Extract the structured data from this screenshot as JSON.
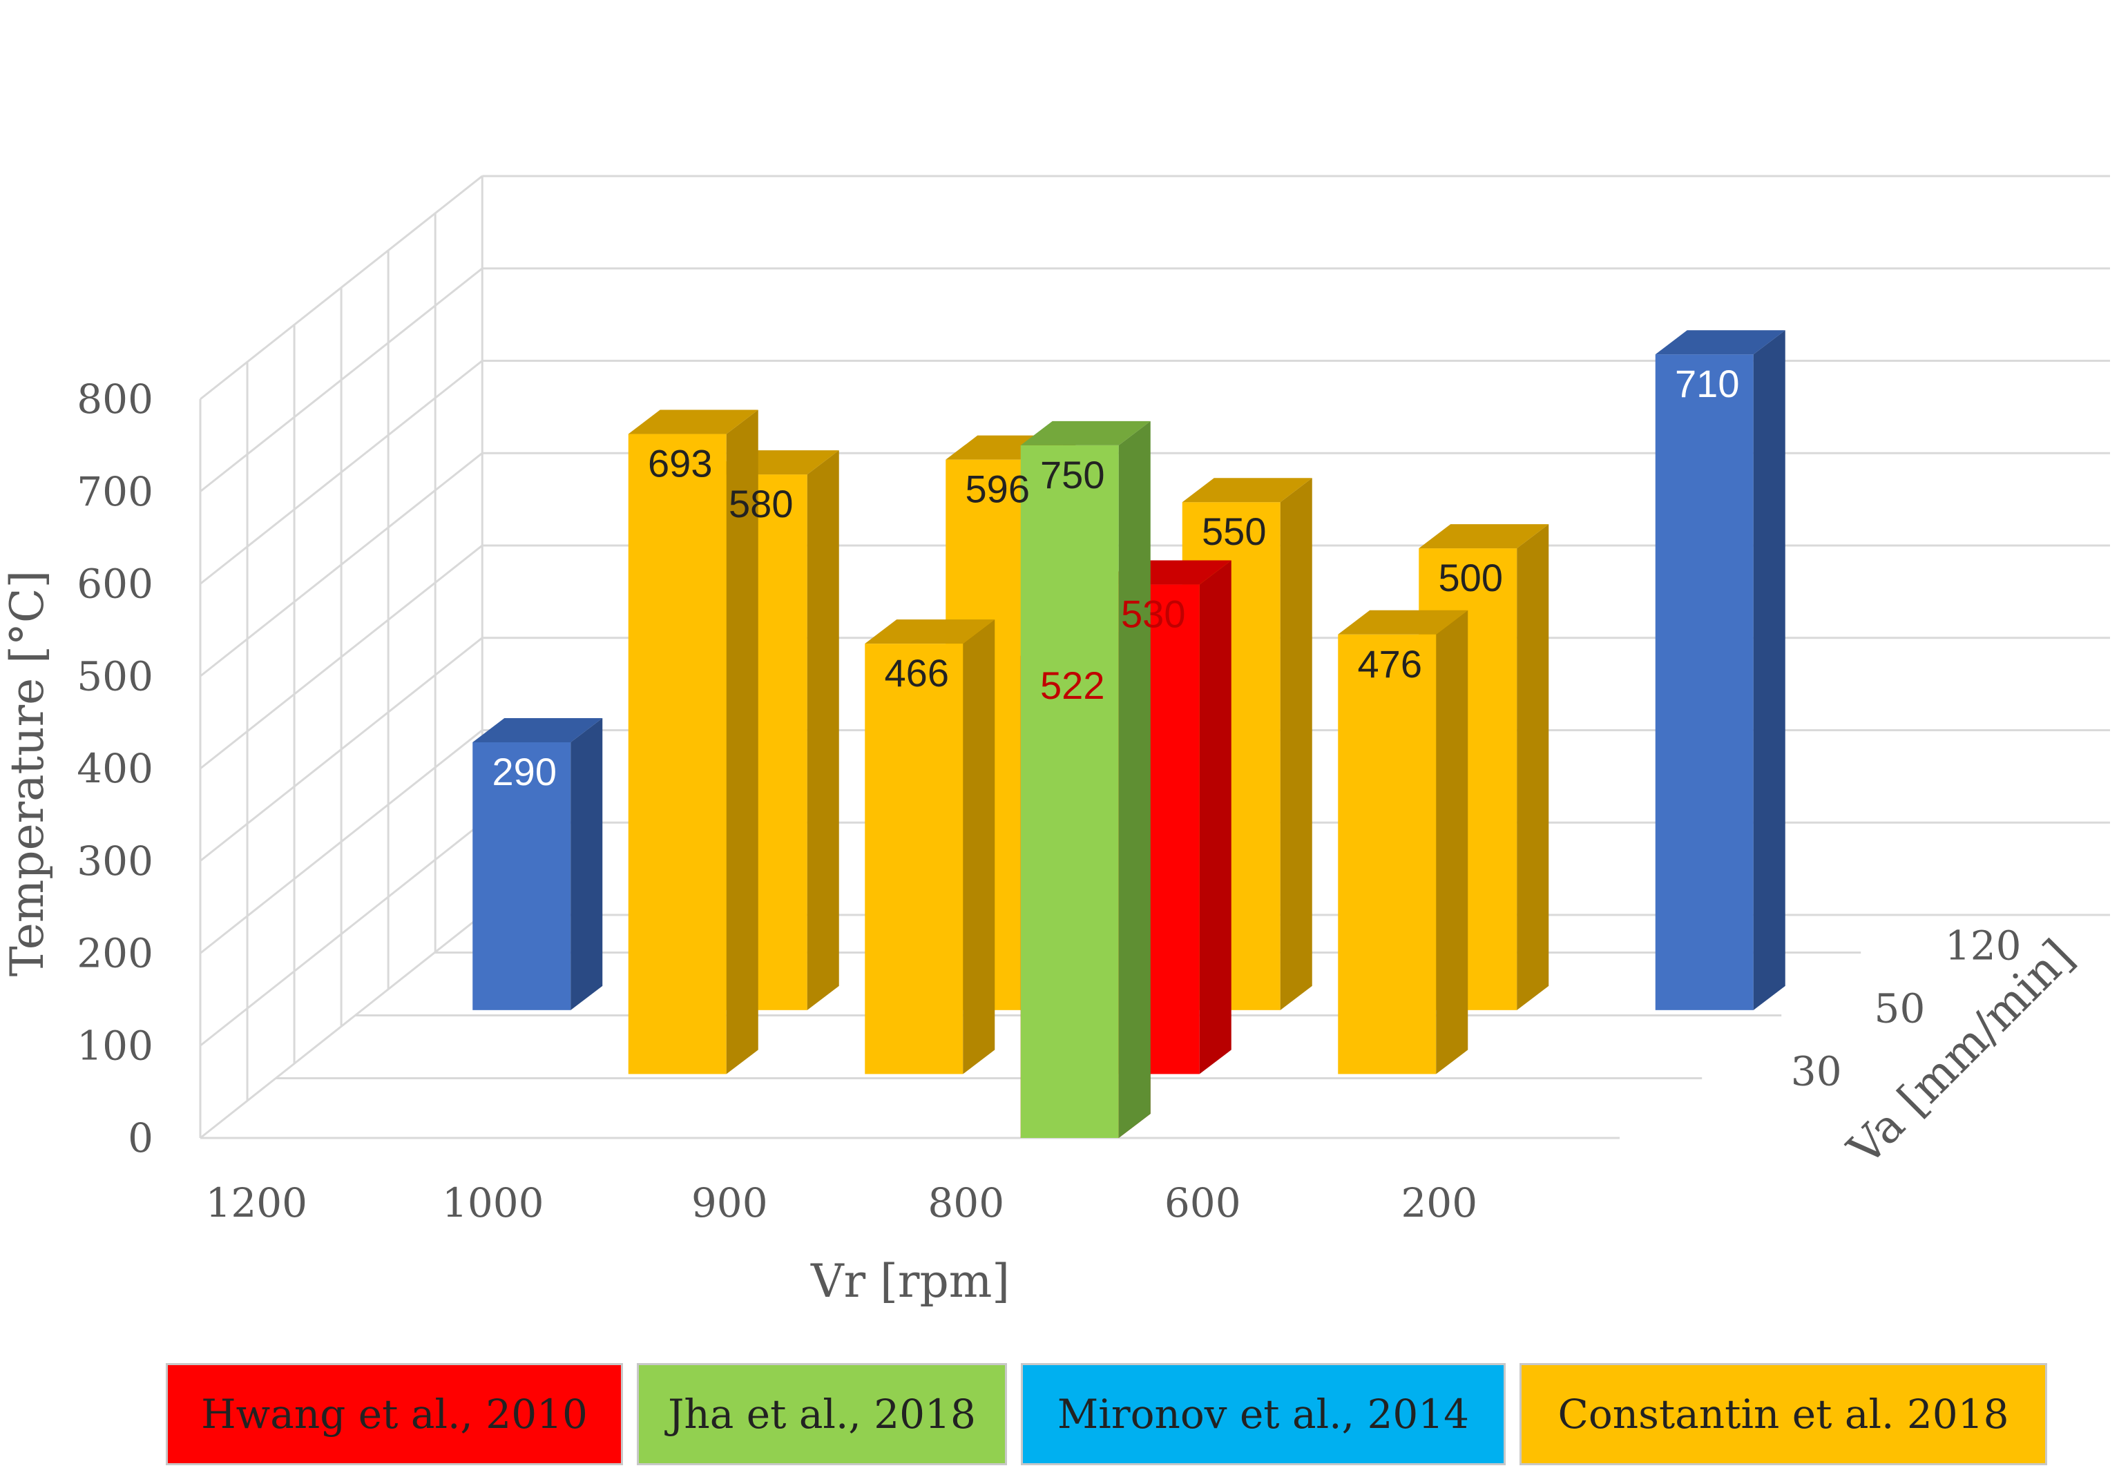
{
  "chart_data": {
    "type": "bar3d",
    "title": "",
    "xlabel": "Vr [rpm]",
    "ylabel": "Temperature [°C]",
    "zlabel": "Va [mm/min]",
    "x_categories": [
      "1200",
      "1000",
      "900",
      "800",
      "600",
      "200"
    ],
    "z_categories": [
      "30",
      "50",
      "120"
    ],
    "ylim": [
      0,
      800
    ],
    "y_ticks": [
      0,
      100,
      200,
      300,
      400,
      500,
      600,
      700,
      800
    ],
    "series": [
      {
        "name": "Hwang et al., 2010",
        "color": "#FF0000",
        "side": "#B80000",
        "top": "#CC0000",
        "text": "#C00000",
        "points": [
          {
            "x": "800",
            "z": "30",
            "value": 522
          },
          {
            "x": "800",
            "z": "50",
            "value": 530
          }
        ]
      },
      {
        "name": "Jha et al., 2018",
        "color": "#92D050",
        "side": "#5F8F33",
        "top": "#74A83C",
        "text": "#222222",
        "points": [
          {
            "x": "800",
            "z": "30",
            "value": 750
          }
        ]
      },
      {
        "name": "Mironov et al., 2014",
        "color": "#4472C4",
        "side": "#2A4A84",
        "top": "#345CA3",
        "text": "#FFFFFF",
        "points": [
          {
            "x": "200",
            "z": "120",
            "value": 710
          },
          {
            "x": "1200",
            "z": "120",
            "value": 290
          }
        ]
      },
      {
        "name": "Constantin et al. 2018",
        "color": "#FFC000",
        "side": "#B38600",
        "top": "#CC9900",
        "text": "#222222",
        "points": [
          {
            "x": "1000",
            "z": "50",
            "value": 693
          },
          {
            "x": "900",
            "z": "50",
            "value": 466
          },
          {
            "x": "600",
            "z": "50",
            "value": 476
          },
          {
            "x": "1000",
            "z": "120",
            "value": 580
          },
          {
            "x": "900",
            "z": "120",
            "value": 596
          },
          {
            "x": "800",
            "z": "120",
            "value": 550
          },
          {
            "x": "600",
            "z": "120",
            "value": 500
          }
        ]
      }
    ],
    "legend_position": "bottom",
    "legend_entries": [
      "Hwang et al., 2010",
      "Jha et al., 2018",
      "Mironov et al., 2014",
      "Constantin et al. 2018"
    ],
    "legend_colors": [
      "#FF0000",
      "#92D050",
      "#00B0F0",
      "#FFC000"
    ]
  }
}
